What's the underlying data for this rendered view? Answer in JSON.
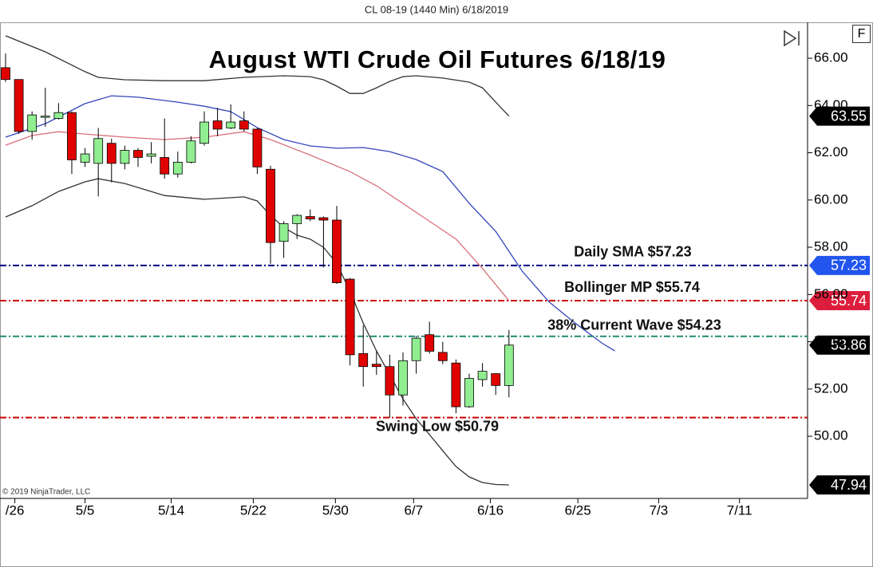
{
  "header": "CL 08-19 (1440 Min)  6/18/2019",
  "copyright": "© 2019 NinjaTrader, LLC",
  "panel_button": "F",
  "chart_data": {
    "type": "candlestick",
    "title": "August WTI Crude Oil Futures 6/18/19",
    "x": [
      0,
      1,
      2,
      3,
      4,
      5,
      6,
      7,
      8,
      9,
      10,
      11,
      12,
      13,
      14,
      15,
      16,
      17,
      18,
      19,
      20,
      21,
      22,
      23,
      24,
      25,
      26,
      27,
      28,
      29,
      30,
      31,
      32,
      33,
      34,
      35,
      36,
      37,
      38
    ],
    "open": [
      65.6,
      65.1,
      62.9,
      63.5,
      63.45,
      63.7,
      61.6,
      61.55,
      62.4,
      61.55,
      62.1,
      61.85,
      61.8,
      61.1,
      61.6,
      62.4,
      63.35,
      63.05,
      63.35,
      63.0,
      61.3,
      58.25,
      59.0,
      59.3,
      59.25,
      59.15,
      56.65,
      53.5,
      53.05,
      52.95,
      51.75,
      53.2,
      54.3,
      53.55,
      53.1,
      51.25,
      52.4,
      52.65,
      52.15
    ],
    "high": [
      66.2,
      65.1,
      63.75,
      64.75,
      64.1,
      63.75,
      62.2,
      63.05,
      62.6,
      62.3,
      62.2,
      62.45,
      63.45,
      62.05,
      62.7,
      63.75,
      63.9,
      64.05,
      63.75,
      63.05,
      61.45,
      59.1,
      59.4,
      59.6,
      59.3,
      59.75,
      56.7,
      54.7,
      53.6,
      53.45,
      53.55,
      54.25,
      54.85,
      54.0,
      53.25,
      52.65,
      53.1,
      52.65,
      54.5
    ],
    "low": [
      65.0,
      62.8,
      62.55,
      63.1,
      63.4,
      61.1,
      61.4,
      60.15,
      60.75,
      61.3,
      61.4,
      61.55,
      60.9,
      60.95,
      61.55,
      62.3,
      62.7,
      63.0,
      62.9,
      61.1,
      57.3,
      57.55,
      58.35,
      59.1,
      57.15,
      56.45,
      53.0,
      52.1,
      52.6,
      50.79,
      51.3,
      52.65,
      53.5,
      53.05,
      50.98,
      51.2,
      52.1,
      51.75,
      51.65
    ],
    "close": [
      65.1,
      62.9,
      63.6,
      63.55,
      63.7,
      61.7,
      61.95,
      62.6,
      61.55,
      62.1,
      61.8,
      61.95,
      61.1,
      61.6,
      62.5,
      63.3,
      63.0,
      63.3,
      63.0,
      61.4,
      58.2,
      59.0,
      59.35,
      59.2,
      59.15,
      56.5,
      53.45,
      52.95,
      52.95,
      51.75,
      53.2,
      54.15,
      53.6,
      53.2,
      51.25,
      52.45,
      52.75,
      52.15,
      53.86
    ],
    "up_color": "#90ee90",
    "down_color": "#e00000",
    "indicators": [
      {
        "color": "#333333",
        "x": [
          0,
          3,
          6,
          7,
          9,
          12,
          15,
          18,
          21,
          23,
          24,
          25,
          26,
          27,
          28,
          29,
          30,
          31,
          33,
          35,
          36,
          37,
          38
        ],
        "values": [
          66.95,
          66.27,
          65.43,
          65.19,
          65.09,
          65.05,
          65.05,
          65.19,
          65.26,
          65.22,
          65.09,
          64.82,
          64.51,
          64.51,
          64.75,
          65.02,
          65.22,
          65.26,
          65.16,
          64.99,
          64.75,
          64.14,
          63.55
        ]
      },
      {
        "color": "#333333",
        "x": [
          0,
          2,
          4,
          6,
          7,
          9,
          12,
          15,
          18,
          19,
          20,
          21,
          22,
          23,
          24,
          25,
          26,
          27,
          28,
          29,
          30,
          31,
          32,
          33,
          34,
          35,
          36,
          37,
          38
        ],
        "values": [
          59.28,
          59.76,
          60.36,
          60.77,
          60.9,
          60.7,
          60.19,
          60.03,
          60.13,
          59.96,
          59.35,
          58.84,
          58.51,
          58.34,
          58.0,
          57.32,
          56.14,
          54.79,
          53.61,
          52.6,
          51.58,
          50.74,
          50.07,
          49.39,
          48.72,
          48.28,
          48.04,
          47.96,
          47.94
        ]
      },
      {
        "color": "#d9707a",
        "x": [
          0,
          2,
          4,
          6,
          9,
          12,
          15,
          18,
          20,
          23,
          26,
          28,
          30,
          32,
          34,
          36,
          38
        ],
        "values": [
          62.32,
          62.73,
          62.89,
          62.79,
          62.66,
          62.56,
          62.66,
          62.89,
          62.56,
          61.9,
          61.2,
          60.6,
          59.85,
          59.1,
          58.35,
          57.1,
          55.74
        ]
      },
      {
        "color": "#3344bb",
        "x": [
          0,
          3,
          6,
          8,
          10,
          13,
          15,
          17,
          19,
          21,
          23,
          25,
          27,
          29,
          31,
          33,
          35,
          37,
          39,
          41,
          43,
          45,
          46
        ],
        "values": [
          62.66,
          63.23,
          64.08,
          64.41,
          64.35,
          64.14,
          63.97,
          63.74,
          63.06,
          62.56,
          62.29,
          62.19,
          62.22,
          62.05,
          61.71,
          61.2,
          59.86,
          58.67,
          56.99,
          55.7,
          54.79,
          53.95,
          53.61
        ]
      }
    ],
    "levels": [
      {
        "label": "Daily SMA $57.23",
        "value": 57.23,
        "color": "#000080"
      },
      {
        "label": "Bollinger MP $55.74",
        "value": 55.74,
        "color": "#cc0000"
      },
      {
        "label": "38% Current Wave $54.23",
        "value": 54.23,
        "color": "#1f8a70"
      },
      {
        "label": "Swing Low $50.79",
        "value": 50.79,
        "color": "#cc0000"
      }
    ],
    "price_markers": [
      {
        "value": 63.55,
        "color": "#000000"
      },
      {
        "value": 57.23,
        "color": "#2255ee"
      },
      {
        "value": 55.74,
        "color": "#dc1e3c"
      },
      {
        "value": 53.86,
        "color": "#000000"
      },
      {
        "value": 47.94,
        "color": "#000000"
      }
    ],
    "xlim": [
      -0.42,
      60.54
    ],
    "ylim": [
      47.37,
      67.52
    ],
    "xticks": [
      {
        "value": 0.7,
        "label": "/26"
      },
      {
        "value": 6,
        "label": "5/5"
      },
      {
        "value": 12.5,
        "label": "5/14"
      },
      {
        "value": 18.7,
        "label": "5/22"
      },
      {
        "value": 24.9,
        "label": "5/30"
      },
      {
        "value": 30.8,
        "label": "6/7"
      },
      {
        "value": 36.6,
        "label": "6/16"
      },
      {
        "value": 43.2,
        "label": "6/25"
      },
      {
        "value": 49.3,
        "label": "7/3"
      },
      {
        "value": 55.4,
        "label": "7/11"
      }
    ],
    "yticks": [
      {
        "value": 50,
        "label": "50.00"
      },
      {
        "value": 52,
        "label": "52.00"
      },
      {
        "value": 54,
        "label": "54.00"
      },
      {
        "value": 56,
        "label": "56.00"
      },
      {
        "value": 58,
        "label": "58.00"
      },
      {
        "value": 60,
        "label": "60.00"
      },
      {
        "value": 62,
        "label": "62.00"
      },
      {
        "value": 64,
        "label": "64.00"
      },
      {
        "value": 66,
        "label": "66.00"
      }
    ],
    "grid": false
  }
}
